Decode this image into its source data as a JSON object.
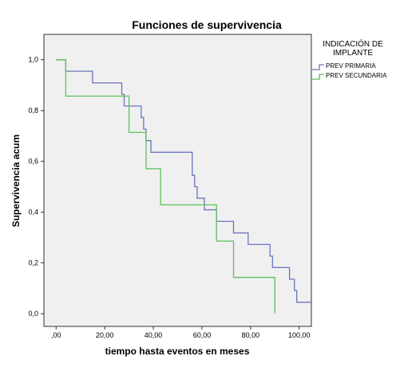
{
  "chart_data": {
    "type": "line",
    "step": true,
    "title": "Funciones de supervivencia",
    "xlabel": "tiempo hasta eventos en meses",
    "ylabel": "Supervivencia acum",
    "xlim": [
      -5,
      105
    ],
    "ylim": [
      -0.05,
      1.1
    ],
    "x_ticks": [
      0,
      20,
      40,
      60,
      80,
      100
    ],
    "x_tick_labels": [
      ",00",
      "20,00",
      "40,00",
      "60,00",
      "80,00",
      "100,00"
    ],
    "y_ticks": [
      0,
      0.2,
      0.4,
      0.6,
      0.8,
      1.0
    ],
    "y_tick_labels": [
      "0,0",
      "0,2",
      "0,4",
      "0,6",
      "0,8",
      "1,0"
    ],
    "plot_background": "#f0f0f0",
    "legend": {
      "title_lines": [
        "INDICACIÓN DE",
        "IMPLANTE"
      ],
      "position": "right"
    },
    "series": [
      {
        "name": "PREV PRIMARIA",
        "color": "#6a74c0",
        "x": [
          0,
          4,
          15,
          27,
          28,
          35,
          36,
          37,
          39,
          40,
          56,
          57,
          58,
          61,
          62,
          66,
          73,
          79,
          88,
          89,
          90,
          96,
          98,
          99,
          105
        ],
        "y": [
          1.0,
          0.955,
          0.909,
          0.864,
          0.818,
          0.773,
          0.727,
          0.682,
          0.636,
          0.636,
          0.545,
          0.5,
          0.455,
          0.409,
          0.409,
          0.364,
          0.318,
          0.273,
          0.227,
          0.182,
          0.182,
          0.136,
          0.091,
          0.045,
          0.045
        ]
      },
      {
        "name": "PREV SECUNDARIA",
        "color": "#5ec05e",
        "x": [
          0,
          3,
          4,
          29,
          30,
          37,
          43,
          66,
          73,
          90,
          90
        ],
        "y": [
          1.0,
          1.0,
          0.857,
          0.857,
          0.714,
          0.571,
          0.429,
          0.286,
          0.143,
          0.143,
          0.0
        ]
      }
    ]
  }
}
